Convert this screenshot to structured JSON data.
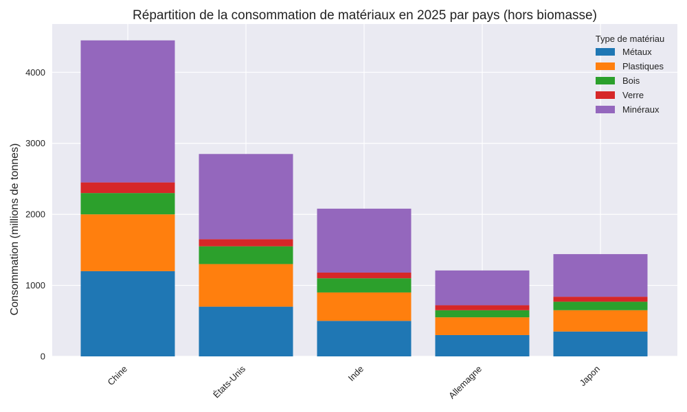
{
  "chart_data": {
    "type": "bar",
    "stacked": true,
    "title": "Répartition de la consommation de matériaux en 2025 par pays (hors biomasse)",
    "xlabel": "",
    "ylabel": "Consommation (millions de tonnes)",
    "ylim": [
      0,
      4680
    ],
    "yticks": [
      0,
      1000,
      2000,
      3000,
      4000
    ],
    "grid": true,
    "legend_title": "Type de matériau",
    "legend_position": "top-right",
    "categories": [
      "Chine",
      "États-Unis",
      "Inde",
      "Allemagne",
      "Japon"
    ],
    "series": [
      {
        "name": "Métaux",
        "color": "#1f77b4",
        "values": [
          1200,
          700,
          500,
          300,
          350
        ]
      },
      {
        "name": "Plastiques",
        "color": "#ff7f0e",
        "values": [
          800,
          600,
          400,
          250,
          300
        ]
      },
      {
        "name": "Bois",
        "color": "#2ca02c",
        "values": [
          300,
          250,
          200,
          100,
          120
        ]
      },
      {
        "name": "Verre",
        "color": "#d62728",
        "values": [
          150,
          100,
          80,
          70,
          70
        ]
      },
      {
        "name": "Minéraux",
        "color": "#9467bd",
        "values": [
          2000,
          1200,
          900,
          490,
          600
        ]
      }
    ]
  }
}
